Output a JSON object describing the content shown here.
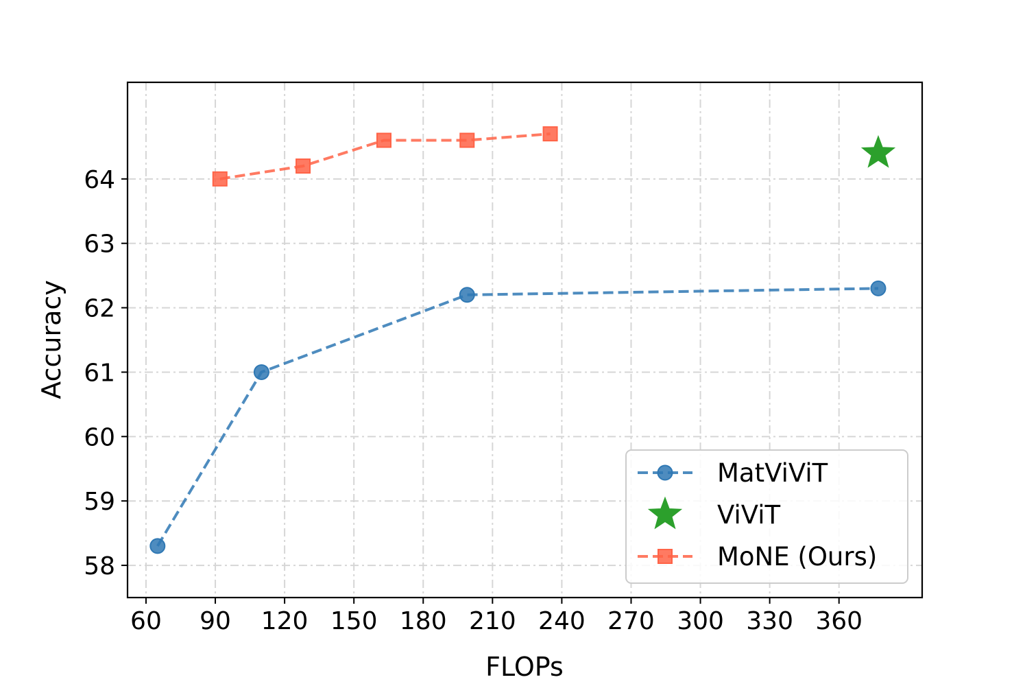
{
  "chart_data": {
    "type": "line",
    "title": "",
    "xlabel": "FLOPs",
    "ylabel": "Accuracy",
    "xlim": [
      52,
      396
    ],
    "ylim": [
      57.5,
      65.5
    ],
    "xticks": [
      60,
      90,
      120,
      150,
      180,
      210,
      240,
      270,
      300,
      330,
      360
    ],
    "yticks": [
      58,
      59,
      60,
      61,
      62,
      63,
      64
    ],
    "grid": true,
    "legend_position": "lower-right",
    "series": [
      {
        "name": "MatViViT",
        "color": "#2f78b4",
        "marker": "circle",
        "linestyle": "dashed",
        "x": [
          65,
          110,
          199,
          377
        ],
        "y": [
          58.3,
          61.0,
          62.2,
          62.3
        ]
      },
      {
        "name": "ViViT",
        "color": "#2ca02c",
        "marker": "star",
        "linestyle": "none",
        "x": [
          377
        ],
        "y": [
          64.4
        ]
      },
      {
        "name": "MoNE (Ours)",
        "color": "#ff6347",
        "marker": "square",
        "linestyle": "dashed",
        "x": [
          92,
          128,
          163,
          199,
          235
        ],
        "y": [
          64.0,
          64.2,
          64.6,
          64.6,
          64.7
        ]
      }
    ]
  }
}
